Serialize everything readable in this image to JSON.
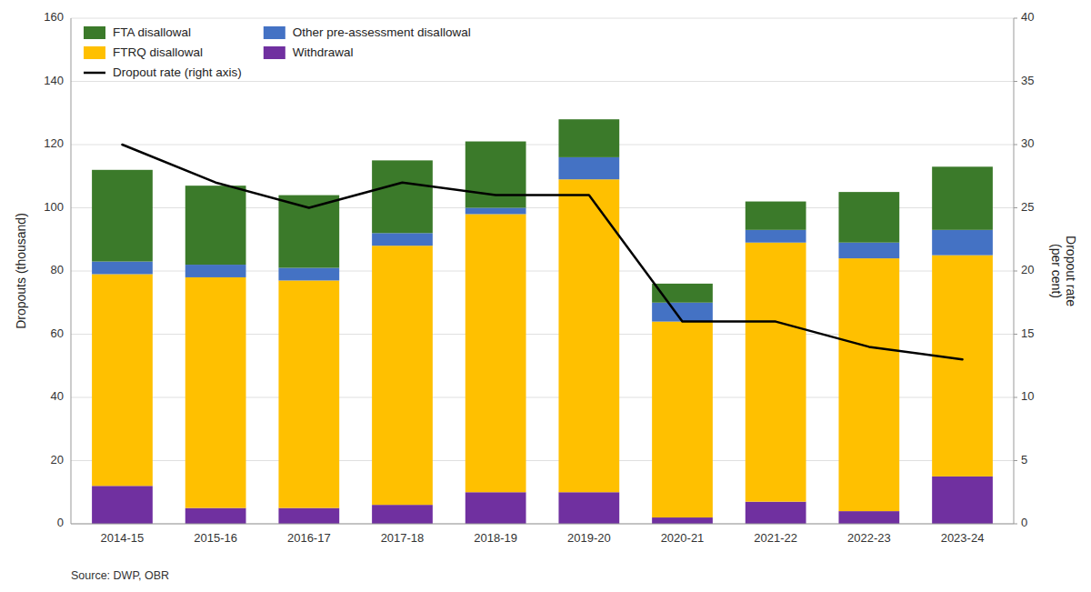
{
  "chart_data": {
    "type": "bar",
    "stacked": true,
    "categories": [
      "2014-15",
      "2015-16",
      "2016-17",
      "2017-18",
      "2018-19",
      "2019-20",
      "2020-21",
      "2021-22",
      "2022-23",
      "2023-24"
    ],
    "series": [
      {
        "name": "Withdrawal",
        "color": "#7030a0",
        "values": [
          12,
          5,
          5,
          6,
          10,
          10,
          2,
          7,
          4,
          15
        ]
      },
      {
        "name": "FTRQ disallowal",
        "color": "#ffc000",
        "values": [
          67,
          73,
          72,
          82,
          88,
          99,
          62,
          82,
          80,
          70
        ]
      },
      {
        "name": "Other pre-assessment disallowal",
        "color": "#4472c4",
        "values": [
          4,
          4,
          4,
          4,
          2,
          7,
          6,
          4,
          5,
          8
        ]
      },
      {
        "name": "FTA disallowal",
        "color": "#3b7a2a",
        "values": [
          29,
          25,
          23,
          23,
          21,
          12,
          6,
          9,
          16,
          20
        ]
      },
      {
        "name": "Dropout rate (right axis)",
        "type": "line",
        "axis": "y2",
        "color": "#000000",
        "values": [
          30,
          27,
          25,
          27,
          26,
          26,
          16,
          16,
          14,
          13
        ]
      }
    ],
    "ylabel": "Dropouts (thousand)",
    "y2label": "Dropout rate\n(per cent)",
    "ylim": [
      0,
      160
    ],
    "yticks": [
      0,
      20,
      40,
      60,
      80,
      100,
      120,
      140,
      160
    ],
    "y2lim": [
      0,
      40
    ],
    "y2ticks": [
      0,
      5,
      10,
      15,
      20,
      25,
      30,
      35,
      40
    ],
    "grid": true,
    "legend": "upper left",
    "source": "Source: DWP, OBR"
  }
}
